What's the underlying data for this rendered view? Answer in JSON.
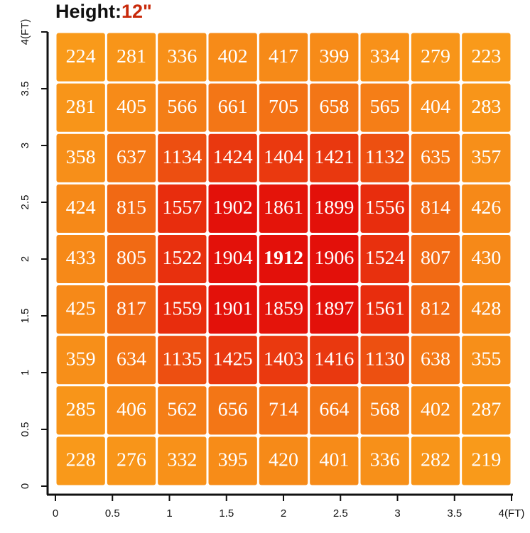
{
  "chart_data": {
    "type": "heatmap",
    "title": "Height:",
    "title_value": "12\"",
    "title_value_color": "#c8290a",
    "color_low": "#f99a1a",
    "color_high": "#e3100a",
    "xlim": [
      0,
      4
    ],
    "ylim": [
      0,
      4
    ],
    "xticks": [
      0,
      0.5,
      1,
      1.5,
      2,
      2.5,
      3,
      3.5,
      {
        "value": 4,
        "label": "4(FT)"
      }
    ],
    "yticks": [
      0,
      0.5,
      1,
      1.5,
      2,
      2.5,
      3,
      3.5,
      {
        "value": 4,
        "label": "4(FT)"
      }
    ],
    "z": [
      [
        224,
        281,
        336,
        402,
        417,
        399,
        334,
        279,
        223
      ],
      [
        281,
        405,
        566,
        661,
        705,
        658,
        565,
        404,
        283
      ],
      [
        358,
        637,
        1134,
        1424,
        1404,
        1421,
        1132,
        635,
        357
      ],
      [
        424,
        815,
        1557,
        1902,
        1861,
        1899,
        1556,
        814,
        426
      ],
      [
        433,
        805,
        1522,
        1904,
        1912,
        1906,
        1524,
        807,
        430
      ],
      [
        425,
        817,
        1559,
        1901,
        1859,
        1897,
        1561,
        812,
        428
      ],
      [
        359,
        634,
        1135,
        1425,
        1403,
        1416,
        1130,
        638,
        355
      ],
      [
        285,
        406,
        562,
        656,
        714,
        664,
        568,
        402,
        287
      ],
      [
        228,
        276,
        332,
        395,
        420,
        401,
        336,
        282,
        219
      ]
    ]
  }
}
